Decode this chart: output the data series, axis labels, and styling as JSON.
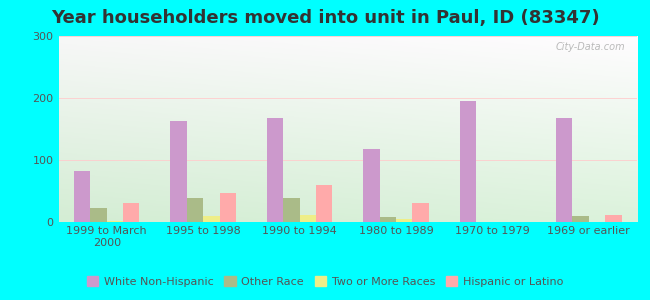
{
  "title": "Year householders moved into unit in Paul, ID (83347)",
  "background_color": "#00FFFF",
  "plot_bg_color_topleft": "#d8eed8",
  "plot_bg_color_topright": "#f0f8f0",
  "plot_bg_color_bottomleft": "#d0e8d0",
  "plot_bg_color_bottomright": "#e8f4e8",
  "categories": [
    "1999 to March\n2000",
    "1995 to 1998",
    "1990 to 1994",
    "1980 to 1989",
    "1970 to 1979",
    "1969 or earlier"
  ],
  "series": {
    "White Non-Hispanic": {
      "values": [
        82,
        163,
        168,
        118,
        195,
        168
      ],
      "color": "#cc99cc"
    },
    "Other Race": {
      "values": [
        23,
        38,
        38,
        8,
        0,
        10
      ],
      "color": "#aabb88"
    },
    "Two or More Races": {
      "values": [
        2,
        10,
        12,
        5,
        0,
        0
      ],
      "color": "#eeee88"
    },
    "Hispanic or Latino": {
      "values": [
        30,
        47,
        60,
        30,
        0,
        12
      ],
      "color": "#ffaaaa"
    }
  },
  "ylim": [
    0,
    300
  ],
  "yticks": [
    0,
    100,
    200,
    300
  ],
  "bar_width": 0.17,
  "title_fontsize": 13,
  "tick_fontsize": 8,
  "legend_fontsize": 8,
  "watermark": "City-Data.com"
}
